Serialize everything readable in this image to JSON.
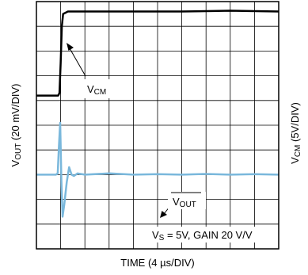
{
  "chart_data": {
    "type": "line",
    "xlabel": "TIME (4 µs/DIV)",
    "ylabel_left": {
      "prefix": "V",
      "sub": "OUT",
      "suffix": " (20 mV/DIV)"
    },
    "ylabel_right": {
      "prefix": "V",
      "sub": "CM",
      "suffix": " (5V/DIV)"
    },
    "grid": true,
    "x_divisions": 10,
    "y_divisions": 10,
    "x_range_div": [
      0,
      10
    ],
    "y_range_div": [
      0,
      10
    ],
    "series": [
      {
        "name": "VCM",
        "color": "#000000",
        "x_div": [
          0,
          0.9,
          0.95,
          1.0,
          1.05,
          1.1,
          1.3,
          2,
          4,
          6,
          8,
          10
        ],
        "y_div": [
          6.2,
          6.2,
          6.3,
          7.5,
          9.0,
          9.5,
          9.6,
          9.6,
          9.6,
          9.6,
          9.63,
          9.6
        ]
      },
      {
        "name": "VOUT",
        "color": "#7ab8dc",
        "x_div": [
          0,
          0.8,
          0.88,
          0.93,
          0.98,
          1.03,
          1.08,
          1.15,
          1.25,
          1.35,
          1.45,
          1.55,
          1.7,
          2,
          3,
          4,
          5,
          6,
          7,
          8,
          9,
          10
        ],
        "y_div": [
          3.0,
          3.0,
          3.05,
          4.2,
          5.1,
          2.8,
          1.3,
          1.8,
          2.7,
          3.3,
          3.0,
          2.95,
          3.05,
          3.0,
          3.05,
          3.0,
          3.02,
          3.0,
          3.03,
          3.0,
          3.02,
          3.0
        ]
      }
    ],
    "annotations": {
      "vcm": {
        "prefix": "V",
        "sub": "CM"
      },
      "vout": {
        "prefix": "V",
        "sub": "OUT"
      },
      "condition": {
        "prefix": "V",
        "sub": "S",
        "suffix": " = 5V, GAIN 20 V/V"
      }
    }
  }
}
